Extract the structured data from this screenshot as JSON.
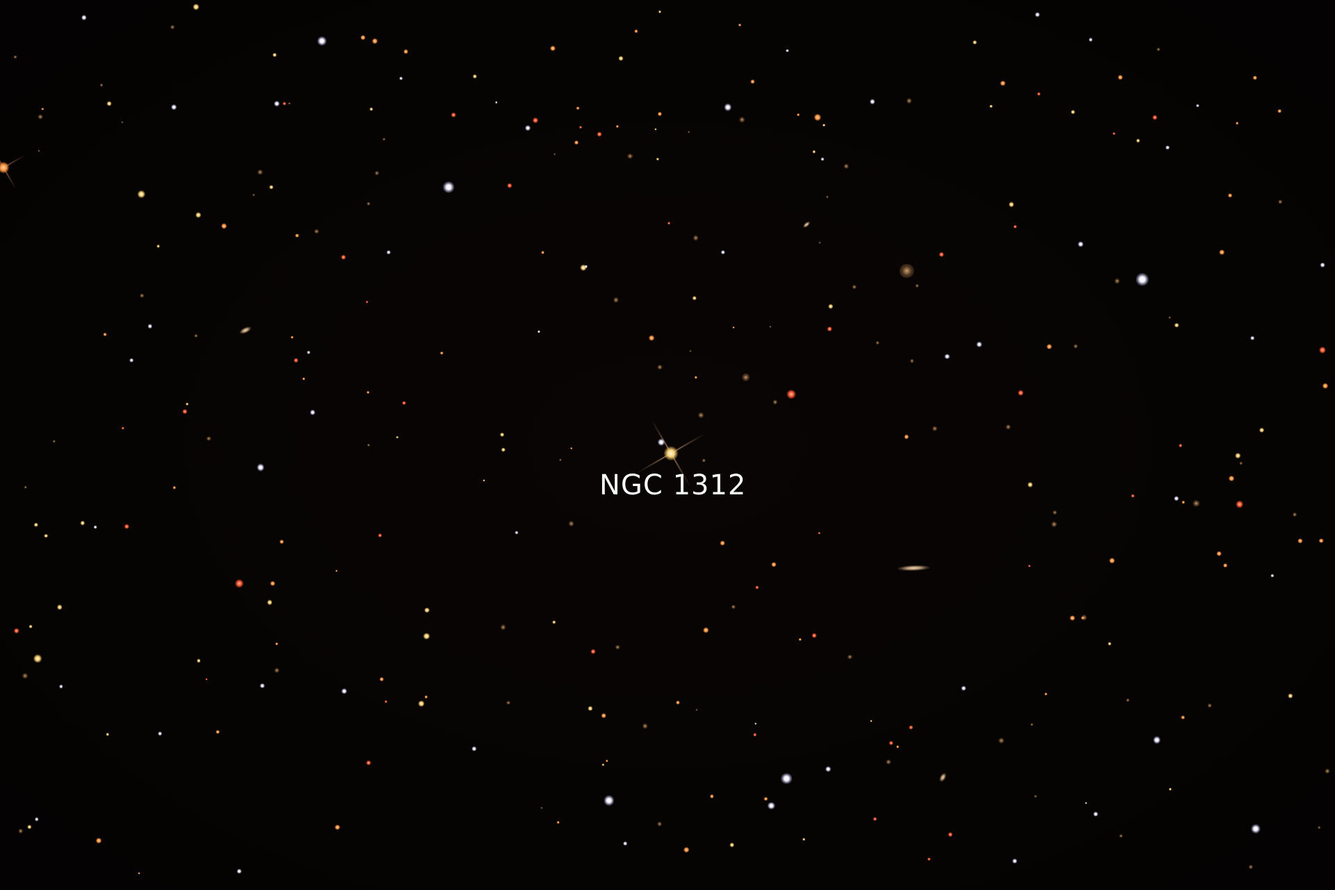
{
  "image": {
    "label": "NGC 1312",
    "label_color": "#ffffff",
    "background_color": "#050202"
  }
}
